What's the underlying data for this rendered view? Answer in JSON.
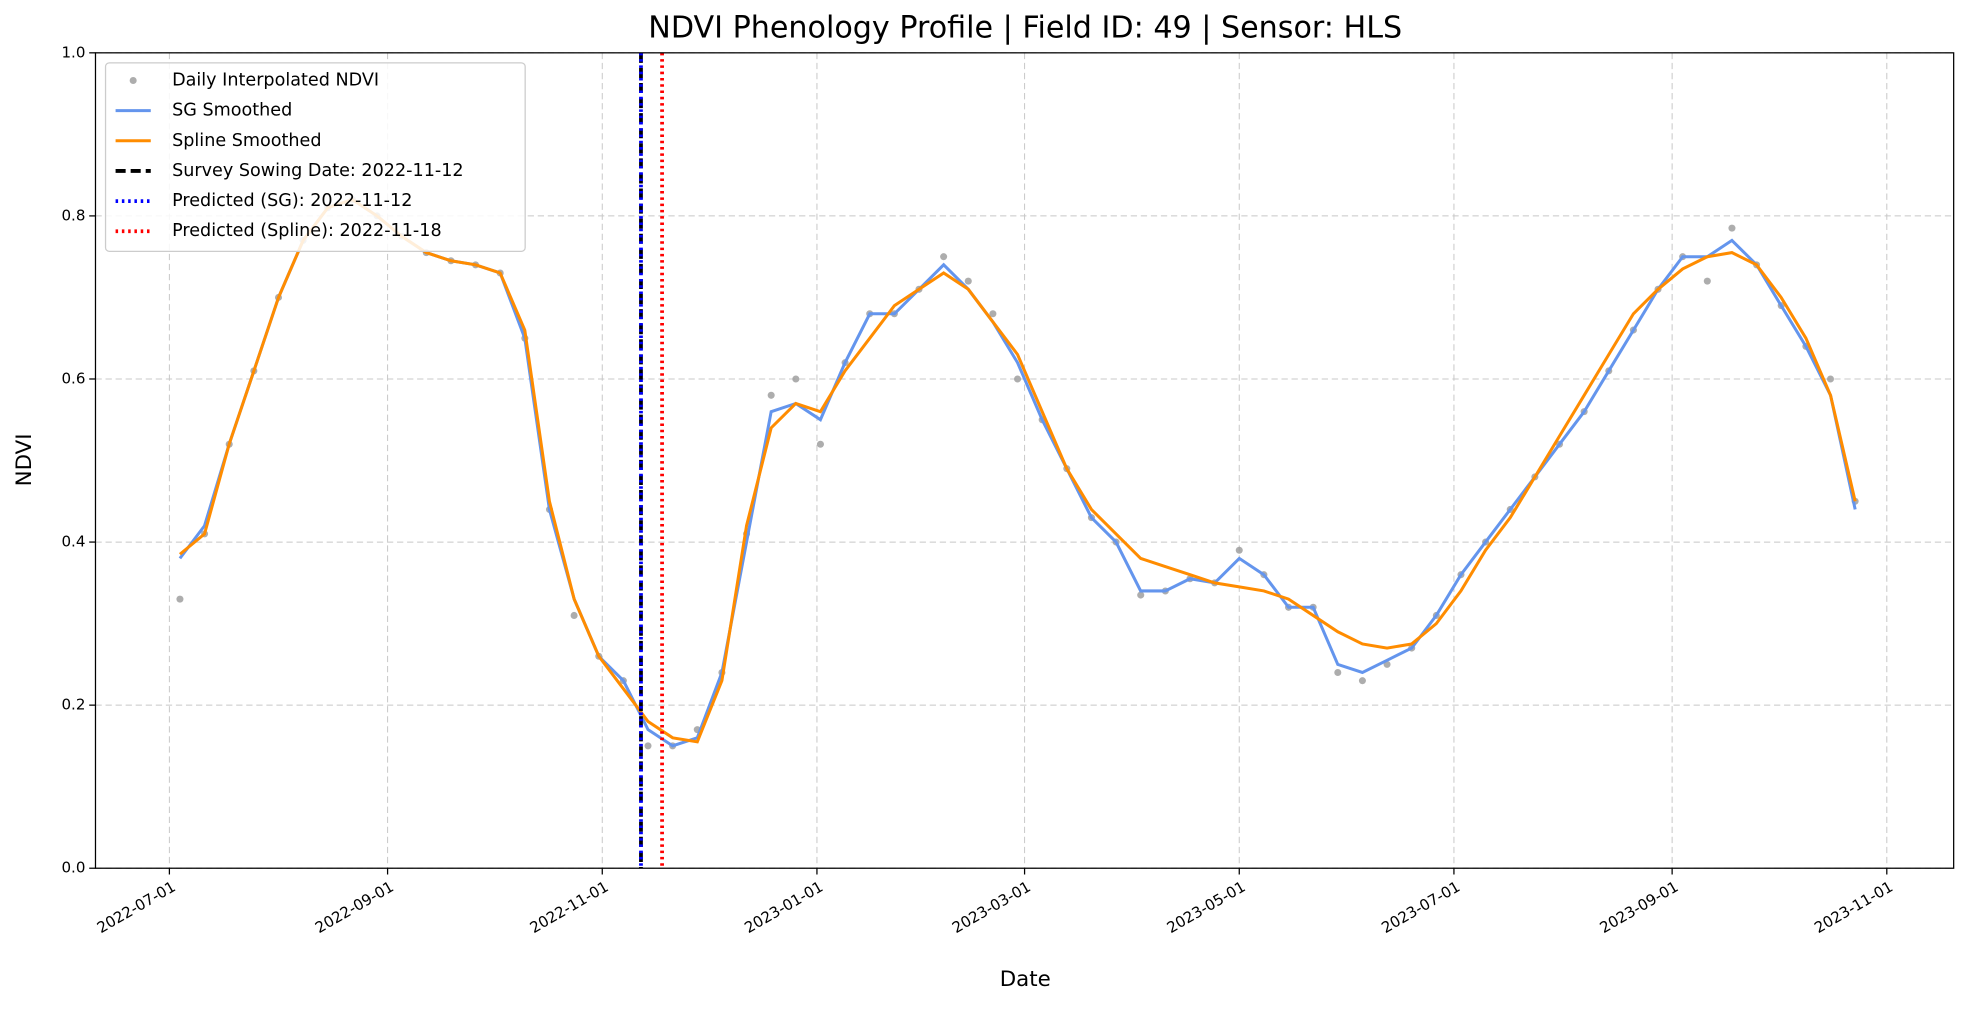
{
  "chart_data": {
    "type": "line",
    "title": "NDVI Phenology Profile | Field ID: 49 | Sensor: HLS",
    "xlabel": "Date",
    "ylabel": "NDVI",
    "xlim": [
      "2022-06-10",
      "2023-11-20"
    ],
    "xticks": [
      "2022-07-01",
      "2022-09-01",
      "2022-11-01",
      "2023-01-01",
      "2023-03-01",
      "2023-05-01",
      "2023-07-01",
      "2023-09-01",
      "2023-11-01"
    ],
    "ylim": [
      0,
      1
    ],
    "yticks": [
      {
        "value": 0,
        "label": "0.0"
      },
      {
        "value": 0.2,
        "label": "0.2"
      },
      {
        "value": 0.4,
        "label": "0.4"
      },
      {
        "value": 0.6,
        "label": "0.6"
      },
      {
        "value": 0.8,
        "label": "0.8"
      },
      {
        "value": 1,
        "label": "1.0"
      }
    ],
    "grid": true,
    "legend": "upper left",
    "x": [
      "2022-07-04",
      "2022-07-11",
      "2022-07-18",
      "2022-07-25",
      "2022-08-01",
      "2022-08-08",
      "2022-08-15",
      "2022-08-22",
      "2022-08-29",
      "2022-09-05",
      "2022-09-12",
      "2022-09-19",
      "2022-09-26",
      "2022-10-03",
      "2022-10-10",
      "2022-10-17",
      "2022-10-24",
      "2022-10-31",
      "2022-11-07",
      "2022-11-14",
      "2022-11-21",
      "2022-11-28",
      "2022-12-05",
      "2022-12-12",
      "2022-12-19",
      "2022-12-26",
      "2023-01-02",
      "2023-01-09",
      "2023-01-16",
      "2023-01-23",
      "2023-01-30",
      "2023-02-06",
      "2023-02-13",
      "2023-02-20",
      "2023-02-27",
      "2023-03-06",
      "2023-03-13",
      "2023-03-20",
      "2023-03-27",
      "2023-04-03",
      "2023-04-10",
      "2023-04-17",
      "2023-04-24",
      "2023-05-01",
      "2023-05-08",
      "2023-05-15",
      "2023-05-22",
      "2023-05-29",
      "2023-06-05",
      "2023-06-12",
      "2023-06-19",
      "2023-06-26",
      "2023-07-03",
      "2023-07-10",
      "2023-07-17",
      "2023-07-24",
      "2023-07-31",
      "2023-08-07",
      "2023-08-14",
      "2023-08-21",
      "2023-08-28",
      "2023-09-04",
      "2023-09-11",
      "2023-09-18",
      "2023-09-25",
      "2023-10-02",
      "2023-10-09",
      "2023-10-16",
      "2023-10-23"
    ],
    "series": [
      {
        "name": "Daily Interpolated NDVI",
        "type": "scatter",
        "color": "#999999",
        "values": [
          0.33,
          0.41,
          0.52,
          0.61,
          0.7,
          0.77,
          0.81,
          0.82,
          0.8,
          0.775,
          0.755,
          0.745,
          0.74,
          0.73,
          0.65,
          0.44,
          0.31,
          0.26,
          0.23,
          0.15,
          0.15,
          0.17,
          0.24,
          0.41,
          0.58,
          0.6,
          0.52,
          0.62,
          0.68,
          0.68,
          0.71,
          0.75,
          0.72,
          0.68,
          0.6,
          0.55,
          0.49,
          0.43,
          0.4,
          0.335,
          0.34,
          0.355,
          0.35,
          0.39,
          0.36,
          0.32,
          0.32,
          0.24,
          0.23,
          0.25,
          0.27,
          0.31,
          0.36,
          0.4,
          0.44,
          0.48,
          0.52,
          0.56,
          0.61,
          0.66,
          0.71,
          0.75,
          0.72,
          0.785,
          0.74,
          0.69,
          0.64,
          0.6,
          0.45
        ]
      },
      {
        "name": "SG Smoothed",
        "type": "line",
        "color": "#6495ED",
        "values": [
          0.38,
          0.42,
          0.52,
          0.61,
          0.7,
          0.77,
          0.81,
          0.82,
          0.8,
          0.775,
          0.755,
          0.745,
          0.74,
          0.73,
          0.65,
          0.44,
          0.33,
          0.26,
          0.23,
          0.17,
          0.15,
          0.16,
          0.24,
          0.4,
          0.56,
          0.57,
          0.55,
          0.62,
          0.68,
          0.68,
          0.71,
          0.74,
          0.71,
          0.67,
          0.62,
          0.55,
          0.49,
          0.43,
          0.4,
          0.34,
          0.34,
          0.355,
          0.35,
          0.38,
          0.36,
          0.32,
          0.32,
          0.25,
          0.24,
          0.255,
          0.27,
          0.31,
          0.36,
          0.4,
          0.44,
          0.48,
          0.52,
          0.56,
          0.61,
          0.66,
          0.71,
          0.75,
          0.75,
          0.77,
          0.74,
          0.69,
          0.64,
          0.58,
          0.44
        ]
      },
      {
        "name": "Spline Smoothed",
        "type": "line",
        "color": "#FF8C00",
        "values": [
          0.385,
          0.41,
          0.52,
          0.61,
          0.7,
          0.77,
          0.81,
          0.82,
          0.8,
          0.775,
          0.755,
          0.745,
          0.74,
          0.73,
          0.66,
          0.45,
          0.33,
          0.26,
          0.22,
          0.18,
          0.16,
          0.155,
          0.23,
          0.42,
          0.54,
          0.57,
          0.56,
          0.61,
          0.65,
          0.69,
          0.71,
          0.73,
          0.71,
          0.67,
          0.63,
          0.56,
          0.49,
          0.44,
          0.41,
          0.38,
          0.37,
          0.36,
          0.35,
          0.345,
          0.34,
          0.33,
          0.31,
          0.29,
          0.275,
          0.27,
          0.275,
          0.3,
          0.34,
          0.39,
          0.43,
          0.48,
          0.53,
          0.58,
          0.63,
          0.68,
          0.71,
          0.735,
          0.75,
          0.755,
          0.74,
          0.7,
          0.65,
          0.58,
          0.45
        ]
      }
    ],
    "vlines": [
      {
        "label": "Survey Sowing Date: 2022-11-12",
        "x": "2022-11-12",
        "color": "#000000",
        "style": "dashed"
      },
      {
        "label": "Predicted (SG): 2022-11-12",
        "x": "2022-11-12",
        "color": "#0000ff",
        "style": "dotted"
      },
      {
        "label": "Predicted (Spline): 2022-11-18",
        "x": "2022-11-18",
        "color": "#ff0000",
        "style": "dotted"
      }
    ]
  }
}
